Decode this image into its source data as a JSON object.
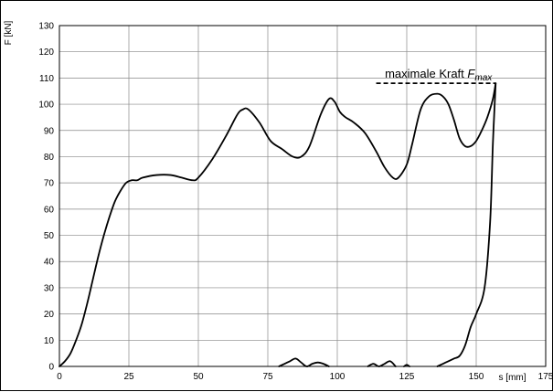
{
  "chart_data": {
    "type": "line",
    "title": "",
    "xlabel": "s [mm]",
    "ylabel": "F [kN]",
    "xlim": [
      0,
      175
    ],
    "ylim": [
      0,
      130
    ],
    "x_ticks": [
      "0",
      "25",
      "50",
      "75",
      "100",
      "125",
      "150",
      "175"
    ],
    "y_ticks": [
      "0",
      "10",
      "20",
      "30",
      "40",
      "50",
      "60",
      "70",
      "80",
      "90",
      "100",
      "110",
      "120",
      "130"
    ],
    "grid": true,
    "colors": {
      "line": "#000000",
      "grid": "#888888"
    },
    "annotation": {
      "text": "maximale Kraft ",
      "symbol": "F",
      "subscript": "max",
      "value": 108,
      "x_from": 114,
      "x_to": 157
    },
    "series": [
      {
        "x": [
          0,
          2,
          4,
          6,
          8,
          10,
          12,
          14,
          16,
          18,
          20,
          22,
          24,
          26,
          28,
          30,
          35,
          40,
          44,
          48,
          50,
          55,
          60,
          64,
          66,
          68,
          72,
          76,
          80,
          84,
          87,
          90,
          94,
          97,
          99,
          101,
          103,
          106,
          110,
          114,
          117,
          120,
          122,
          125,
          127,
          130,
          133,
          136,
          138,
          140,
          142,
          144,
          146,
          148,
          150,
          152,
          154,
          156,
          157
        ],
        "y": [
          0,
          2,
          5,
          10,
          16,
          24,
          33,
          42,
          50,
          57,
          63,
          67,
          70,
          71,
          71,
          72,
          73,
          73,
          72,
          71,
          72,
          79,
          88,
          96,
          98,
          98,
          93,
          86,
          83,
          80,
          80,
          84,
          96,
          102,
          101,
          97,
          95,
          93,
          89,
          82,
          76,
          72,
          72,
          77,
          85,
          98,
          103,
          104,
          103,
          100,
          94,
          87,
          84,
          84,
          86,
          90,
          95,
          102,
          108
        ]
      },
      {
        "x": [
          157,
          156,
          155,
          153,
          150,
          148,
          146,
          144,
          142,
          140,
          138,
          136
        ],
        "y": [
          108,
          85,
          55,
          30,
          20,
          15,
          8,
          4,
          3,
          2,
          1,
          0
        ]
      },
      {
        "x": [
          79,
          81,
          83,
          85,
          87,
          89,
          91,
          93,
          95,
          97
        ],
        "y": [
          0,
          1,
          2,
          3,
          1.5,
          0,
          1,
          1.5,
          1,
          0
        ]
      },
      {
        "x": [
          111,
          113,
          115,
          117,
          119,
          121
        ],
        "y": [
          0,
          1,
          0,
          1,
          2,
          0
        ]
      },
      {
        "x": [
          124,
          125,
          126
        ],
        "y": [
          0,
          0.6,
          0
        ]
      }
    ]
  }
}
